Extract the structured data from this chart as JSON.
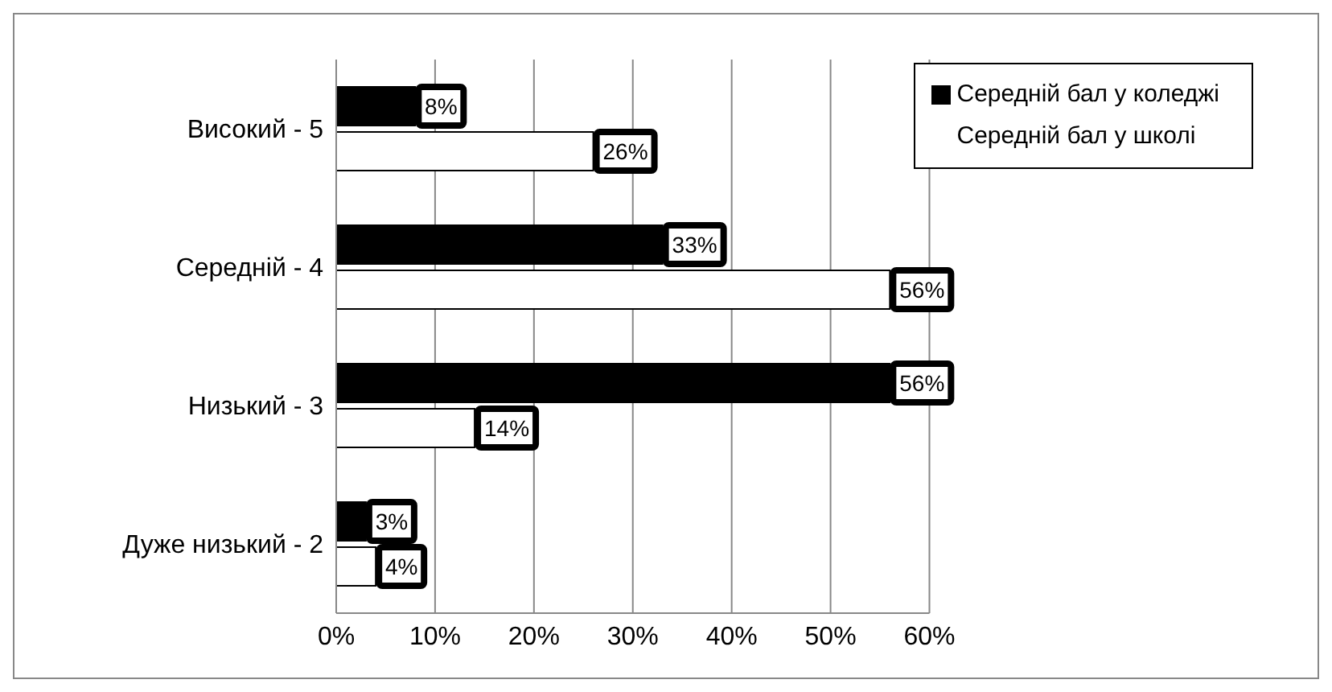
{
  "chart_data": {
    "type": "bar",
    "orientation": "horizontal",
    "categories": [
      "Високий - 5",
      "Середній - 4",
      "Низький - 3",
      "Дуже низький - 2"
    ],
    "series": [
      {
        "name": "Середній бал у коледжі",
        "color": "#000000",
        "values": [
          8,
          33,
          56,
          3
        ],
        "value_labels": [
          "8%",
          "33%",
          "56%",
          "3%"
        ]
      },
      {
        "name": "Середній бал у школі",
        "color": "#ffffff",
        "values": [
          26,
          56,
          14,
          4
        ],
        "value_labels": [
          "26%",
          "56%",
          "14%",
          "4%"
        ]
      }
    ],
    "xlim": [
      0,
      60
    ],
    "xticks": [
      {
        "value": 0,
        "label": "0%"
      },
      {
        "value": 10,
        "label": "10%"
      },
      {
        "value": 20,
        "label": "20%"
      },
      {
        "value": 30,
        "label": "30%"
      },
      {
        "value": 40,
        "label": "40%"
      },
      {
        "value": 50,
        "label": "50%"
      },
      {
        "value": 60,
        "label": "60%"
      }
    ],
    "grid": "x",
    "legend": "top right"
  }
}
